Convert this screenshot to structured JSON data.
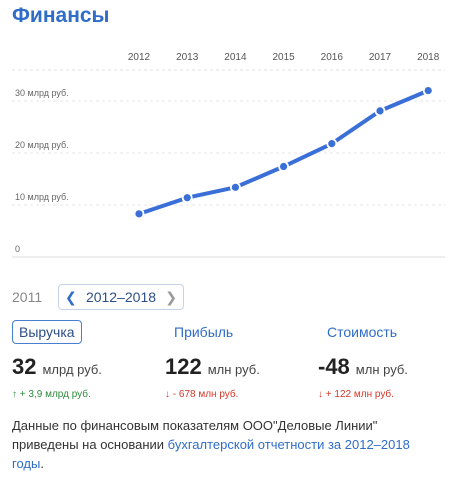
{
  "header": {
    "title": "Финансы"
  },
  "chart_data": {
    "type": "line",
    "x": [
      2012,
      2013,
      2014,
      2015,
      2016,
      2017,
      2018
    ],
    "series": [
      {
        "values": [
          8.3,
          11.4,
          13.4,
          17.4,
          21.8,
          28.1,
          32.0
        ]
      }
    ],
    "x_tick_labels": [
      "2012",
      "2013",
      "2014",
      "2015",
      "2016",
      "2017",
      "2018"
    ],
    "y_ticks": [
      0,
      10,
      20,
      30
    ],
    "y_tick_labels": [
      "0",
      "10 млрд руб.",
      "20 млрд руб.",
      "30 млрд руб."
    ],
    "ylim": [
      0,
      34
    ],
    "grid": true,
    "color": "#3a6fd8"
  },
  "period": {
    "prev_year": "2011",
    "range_label": "2012–2018"
  },
  "metrics": [
    {
      "label": "Выручка",
      "value": "32",
      "unit": "млрд руб.",
      "change": "↑ + 3,9 млрд руб.",
      "direction": "up",
      "active": true
    },
    {
      "label": "Прибыль",
      "value": "122",
      "unit": "млн руб.",
      "change": "↓ - 678 млн руб.",
      "direction": "down",
      "active": false
    },
    {
      "label": "Стоимость",
      "value": "-48",
      "unit": "млн руб.",
      "change": "↓ + 122 млн руб.",
      "direction": "down",
      "active": false
    }
  ],
  "description": {
    "text": "Данные по финансовым показателям ООО\"Деловые Линии\" приведены на основании ",
    "link": "бухгалтерской отчетности за 2012–2018 годы",
    "end": "."
  },
  "colors": {
    "accent": "#2f6dc8",
    "line": "#3a6fd8",
    "up": "#2e8b3a",
    "down": "#d2382c"
  }
}
